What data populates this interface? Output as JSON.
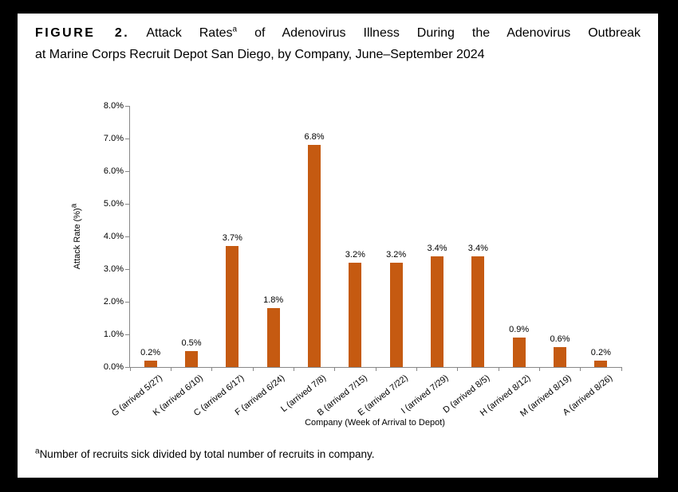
{
  "title": {
    "figure_label": "FIGURE 2.",
    "line1_pre": "Attack Rates",
    "superscript": "a",
    "line1_post": "of Adenovirus Illness During the Adenovirus Outbreak",
    "line2": "at Marine Corps Recruit Depot San Diego, by Company, June–September 2024"
  },
  "footnote": {
    "superscript": "a",
    "text": "Number of recruits sick divided by total number of recruits in company."
  },
  "chart_data": {
    "type": "bar",
    "title": "",
    "categories": [
      "G (arrived 5/27)",
      "K (arrived 6/10)",
      "C (arrived 6/17)",
      "F (arrived 6/24)",
      "L (arrived 7/8)",
      "B (arrived 7/15)",
      "E (arrived 7/22)",
      "I (arrived 7/29)",
      "D (arrived 8/5)",
      "H (arrived 8/12)",
      "M (arrived 8/19)",
      "A (arrived 8/26)"
    ],
    "values": [
      0.2,
      0.5,
      3.7,
      1.8,
      6.8,
      3.2,
      3.2,
      3.4,
      3.4,
      0.9,
      0.6,
      0.2
    ],
    "value_labels": [
      "0.2%",
      "0.5%",
      "3.7%",
      "1.8%",
      "6.8%",
      "3.2%",
      "3.2%",
      "3.4%",
      "3.4%",
      "0.9%",
      "0.6%",
      "0.2%"
    ],
    "xlabel": "Company (Week of Arrival to Depot)",
    "ylabel": "Attack Rate (%)",
    "ylabel_sup": "a",
    "ylim": [
      0,
      8
    ],
    "ytick_labels": [
      "0.0%",
      "1.0%",
      "2.0%",
      "3.0%",
      "4.0%",
      "5.0%",
      "6.0%",
      "7.0%",
      "8.0%"
    ],
    "bar_color": "#C55A11",
    "axis_color": "#878787",
    "grid": "off",
    "legend": "none"
  }
}
